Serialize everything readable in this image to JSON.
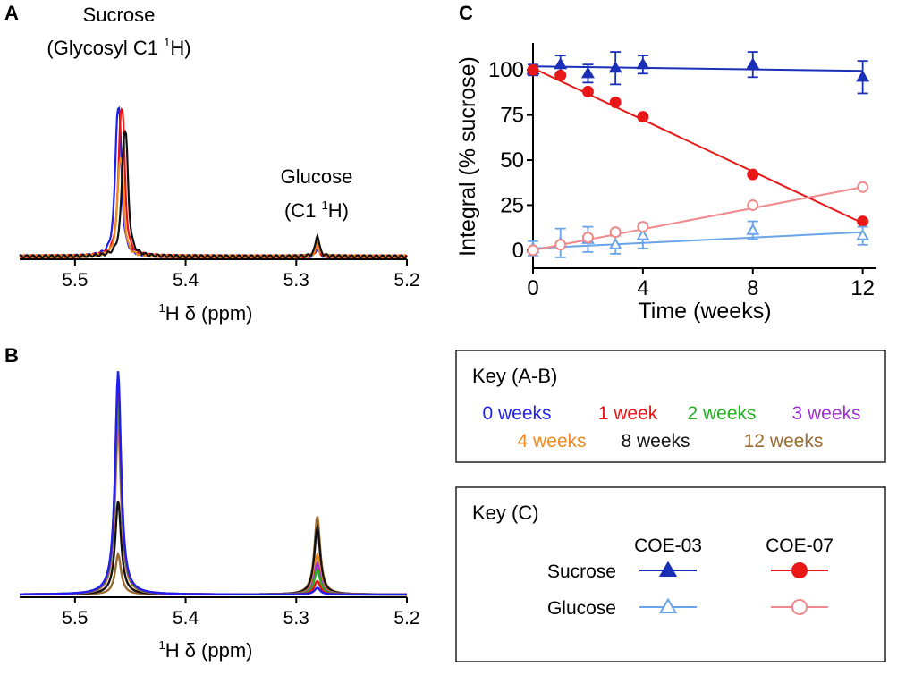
{
  "panel_labels": {
    "a": "A",
    "b": "B",
    "c": "C"
  },
  "colors": {
    "0 weeks": "#1f1ff0",
    "1 week": "#f01010",
    "2 weeks": "#20b020",
    "3 weeks": "#a030d0",
    "4 weeks": "#f08a20",
    "8 weeks": "#111111",
    "12 weeks": "#9a6a30",
    "coe03": "#1a2fb8",
    "coe07": "#e81818",
    "glucose03": "#6aa4e8",
    "glucose07": "#f08a8a"
  },
  "chart_data": [
    {
      "id": "A",
      "type": "line",
      "title": "",
      "xlabel_pre": "1",
      "xlabel": "H δ (ppm)",
      "xlim": [
        5.55,
        5.2
      ],
      "ylim": [
        0,
        105
      ],
      "ticks": [
        "5.5",
        "5.4",
        "5.3",
        "5.2"
      ],
      "tick_values": [
        5.5,
        5.4,
        5.3,
        5.2
      ],
      "annotations": [
        {
          "id": "sucrose",
          "line1": "Sucrose",
          "line2_pre": "(Glycosyl C1 ",
          "sup": "1",
          "line2_post": "H)",
          "x": 5.46,
          "y": 102
        },
        {
          "id": "glucose",
          "line1": "Glucose",
          "line2_pre": "(C1 ",
          "sup": "1",
          "line2_post": "H)",
          "x": 5.28,
          "y": 25
        }
      ],
      "series": [
        {
          "name": "0 weeks",
          "color_key": "0 weeks",
          "center": 5.462,
          "height": 100
        },
        {
          "name": "1 week",
          "color_key": "1 week",
          "center": 5.459,
          "height": 100
        },
        {
          "name": "4 weeks",
          "color_key": "4 weeks",
          "center": 5.46,
          "height": 66
        },
        {
          "name": "8 weeks",
          "color_key": "8 weeks",
          "center": 5.456,
          "height": 84
        }
      ]
    },
    {
      "id": "B",
      "type": "line",
      "title": "",
      "xlabel_pre": "1",
      "xlabel": "H δ (ppm)",
      "xlim": [
        5.55,
        5.2
      ],
      "ylim": [
        0,
        105
      ],
      "ticks": [
        "5.5",
        "5.4",
        "5.3",
        "5.2"
      ],
      "tick_values": [
        5.5,
        5.4,
        5.3,
        5.2
      ],
      "series": [
        {
          "name": "0 weeks",
          "color_key": "0 weeks",
          "sucrose": 100,
          "glucose": 3
        },
        {
          "name": "1 week",
          "color_key": "1 week",
          "sucrose": 97,
          "glucose": 6
        },
        {
          "name": "2 weeks",
          "color_key": "2 weeks",
          "sucrose": 88,
          "glucose": 11
        },
        {
          "name": "3 weeks",
          "color_key": "3 weeks",
          "sucrose": 82,
          "glucose": 14
        },
        {
          "name": "4 weeks",
          "color_key": "4 weeks",
          "sucrose": 74,
          "glucose": 18
        },
        {
          "name": "8 weeks",
          "color_key": "8 weeks",
          "sucrose": 42,
          "glucose": 30
        },
        {
          "name": "12 weeks",
          "color_key": "12 weeks",
          "sucrose": 18,
          "glucose": 35
        }
      ]
    },
    {
      "id": "C",
      "type": "scatter",
      "title": "",
      "xlabel": "Time (weeks)",
      "ylabel": "Integral (% sucrose)",
      "xlim": [
        0,
        12.5
      ],
      "ylim": [
        -10,
        115
      ],
      "xticks": [
        0,
        4,
        8,
        12
      ],
      "yticks": [
        0,
        25,
        50,
        75,
        100
      ],
      "series": [
        {
          "name": "Sucrose COE-03",
          "color_key": "coe03",
          "marker": "triangle",
          "filled": true,
          "x": [
            0,
            1,
            2,
            3,
            4,
            8,
            12
          ],
          "y": [
            100,
            103,
            98,
            101,
            103,
            103,
            96
          ],
          "err": [
            3,
            5,
            5,
            9,
            5,
            7,
            9
          ],
          "fit": [
            102,
            99.5
          ]
        },
        {
          "name": "Sucrose COE-07",
          "color_key": "coe07",
          "marker": "circle",
          "filled": true,
          "x": [
            0,
            1,
            2,
            3,
            4,
            8,
            12
          ],
          "y": [
            100,
            97,
            88,
            82,
            74,
            42,
            16
          ],
          "err": [
            0,
            0,
            0,
            0,
            0,
            0,
            0
          ],
          "fit": [
            101,
            15
          ]
        },
        {
          "name": "Glucose COE-03",
          "color_key": "glucose03",
          "marker": "triangle",
          "filled": false,
          "x": [
            0,
            1,
            2,
            3,
            4,
            8,
            12
          ],
          "y": [
            1,
            4,
            6,
            3,
            8,
            11,
            8
          ],
          "err": [
            4,
            8,
            7,
            5,
            7,
            5,
            5
          ],
          "fit": [
            1,
            10
          ]
        },
        {
          "name": "Glucose COE-07",
          "color_key": "glucose07",
          "marker": "circle",
          "filled": false,
          "x": [
            0,
            1,
            2,
            3,
            4,
            8,
            12
          ],
          "y": [
            0,
            3,
            7,
            10,
            13,
            25,
            35
          ],
          "err": [
            0,
            0,
            0,
            0,
            0,
            0,
            0
          ],
          "fit": [
            0,
            35
          ]
        }
      ]
    }
  ],
  "key_ab": {
    "title": "Key (A-B)",
    "row1": [
      {
        "label": "0 weeks",
        "color_key": "0 weeks"
      },
      {
        "label": "1 week",
        "color_key": "1 week"
      },
      {
        "label": "2 weeks",
        "color_key": "2 weeks"
      },
      {
        "label": "3 weeks",
        "color_key": "3 weeks"
      }
    ],
    "row2": [
      {
        "label": "4 weeks",
        "color_key": "4 weeks"
      },
      {
        "label": "8 weeks",
        "color_key": "8 weeks"
      },
      {
        "label": "12 weeks",
        "color_key": "12 weeks"
      }
    ]
  },
  "key_c": {
    "title": "Key (C)",
    "col1": "COE-03",
    "col2": "COE-07",
    "row1": "Sucrose",
    "row2": "Glucose"
  }
}
